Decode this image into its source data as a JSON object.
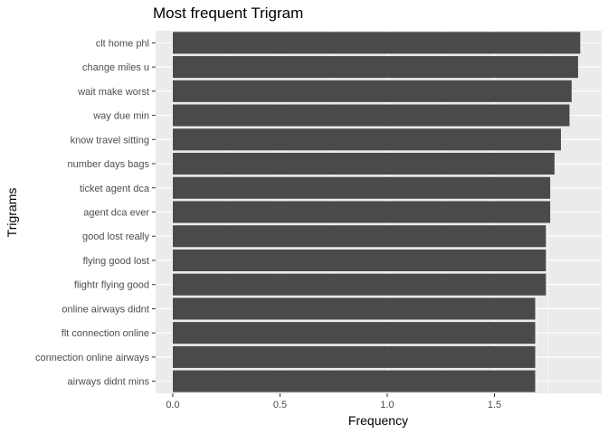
{
  "chart_data": {
    "type": "bar",
    "orientation": "horizontal",
    "title": "Most frequent Trigram",
    "xlabel": "Frequency",
    "ylabel": "Trigrams",
    "categories": [
      "clt home phl",
      "change miles u",
      "wait make worst",
      "way due min",
      "know travel sitting",
      "number days bags",
      "ticket agent dca",
      "agent dca ever",
      "good lost really",
      "flying good lost",
      "flightr flying good",
      "online airways didnt",
      "flt connection online",
      "connection online airways",
      "airways didnt mins"
    ],
    "values": [
      1.9,
      1.89,
      1.86,
      1.85,
      1.81,
      1.78,
      1.76,
      1.76,
      1.74,
      1.74,
      1.74,
      1.69,
      1.69,
      1.69,
      1.69
    ],
    "xlim": [
      -0.08,
      2.0
    ],
    "xticks": [
      0.0,
      0.5,
      1.0,
      1.5
    ],
    "xtick_labels": [
      "0.0",
      "0.5",
      "1.0",
      "1.5"
    ],
    "grid": true,
    "colors": {
      "bar": "#4a4a4a",
      "panel": "#ebebeb",
      "grid": "#ffffff"
    }
  }
}
